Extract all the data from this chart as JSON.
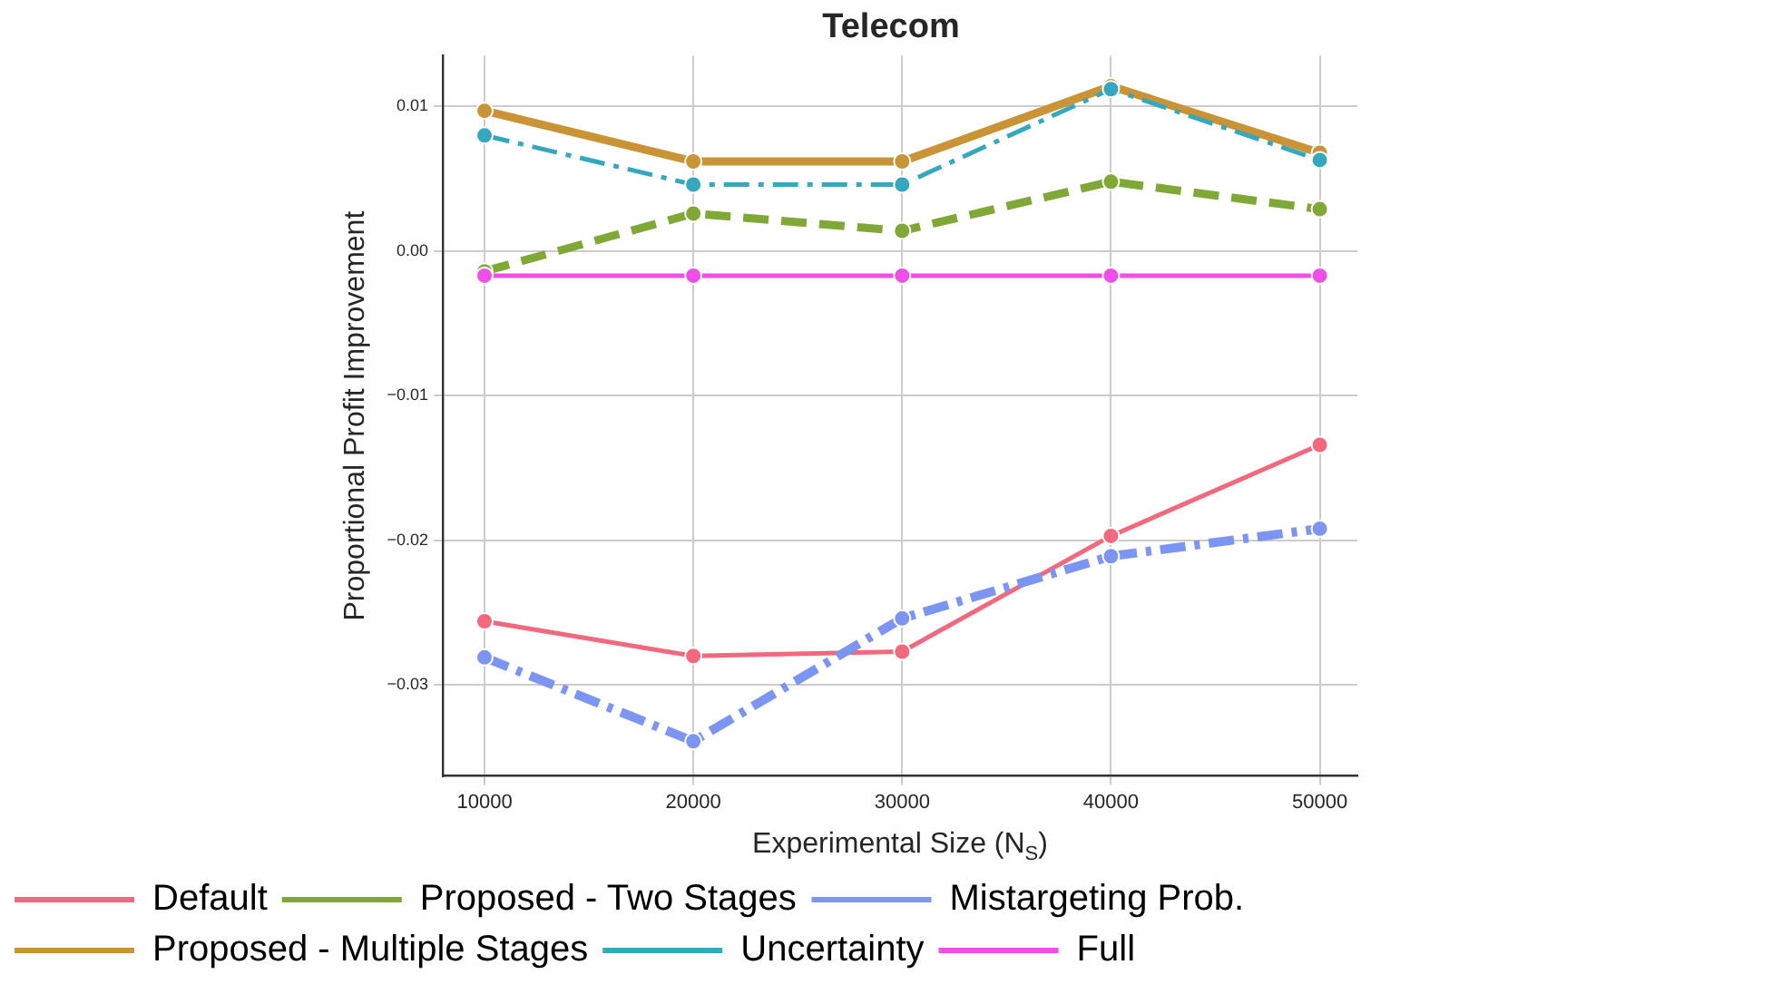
{
  "chart_data": {
    "type": "line",
    "title": "Telecom",
    "xlabel": "Experimental Size (N$_{S}$)",
    "ylabel": "Proportional Profit Improvement",
    "x": [
      10000,
      20000,
      30000,
      40000,
      50000
    ],
    "xlim": [
      8000,
      51800
    ],
    "xticks": [
      10000,
      20000,
      30000,
      40000,
      50000
    ],
    "ylim": [
      -0.0363,
      0.0135
    ],
    "yticks": [
      -0.03,
      -0.02,
      -0.01,
      {
        "value": 0,
        "label": "0.00"
      },
      0.01
    ],
    "grid": true,
    "legend": "bottom",
    "marker": "circle",
    "series": [
      {
        "name": "Default",
        "color": "#f2697d",
        "line_style": "solid",
        "values": [
          -0.0256,
          -0.028,
          -0.0277,
          -0.0197,
          -0.0134
        ]
      },
      {
        "name": "Proposed - Two Stages",
        "color": "#7fa836",
        "line_style": "dashed",
        "values": [
          -0.0014,
          0.0026,
          0.0014,
          0.0048,
          0.0029
        ]
      },
      {
        "name": "Mistargeting Prob.",
        "color": "#7d95f2",
        "line_style": "dashdot",
        "values": [
          -0.0281,
          -0.0339,
          -0.0254,
          -0.0211,
          -0.0192
        ]
      },
      {
        "name": "Proposed - Multiple Stages",
        "color": "#c99336",
        "line_style": "solid",
        "values": [
          0.0097,
          0.0062,
          0.0062,
          0.0114,
          0.0068
        ]
      },
      {
        "name": "Uncertainty",
        "color": "#35a7be",
        "line_style": "dashdot",
        "values": [
          0.008,
          0.0046,
          0.0046,
          0.0112,
          0.0063
        ]
      },
      {
        "name": "Full",
        "color": "#f04ee8",
        "line_style": "solid",
        "values": [
          -0.0017,
          -0.0017,
          -0.0017,
          -0.0017,
          -0.0017
        ]
      }
    ]
  }
}
